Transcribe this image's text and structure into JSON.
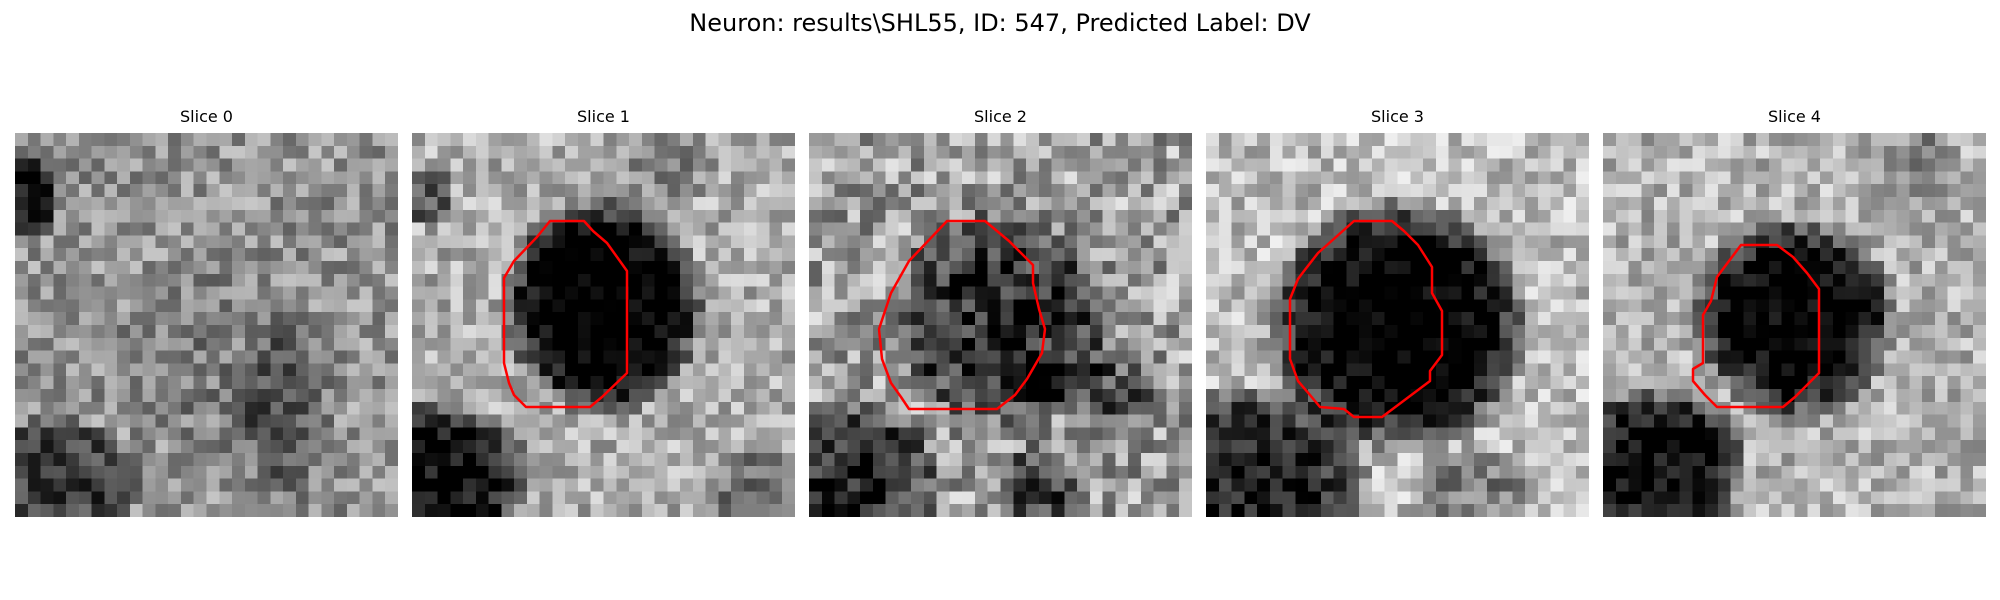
{
  "figure": {
    "title": "Neuron: results\\SHL55, ID: 547, Predicted Label: DV"
  },
  "panels": [
    {
      "title": "Slice 0"
    },
    {
      "title": "Slice 1"
    },
    {
      "title": "Slice 2"
    },
    {
      "title": "Slice 3"
    },
    {
      "title": "Slice 4"
    }
  ],
  "colors": {
    "contour": "#ff0000",
    "colormap": "grayscale"
  }
}
